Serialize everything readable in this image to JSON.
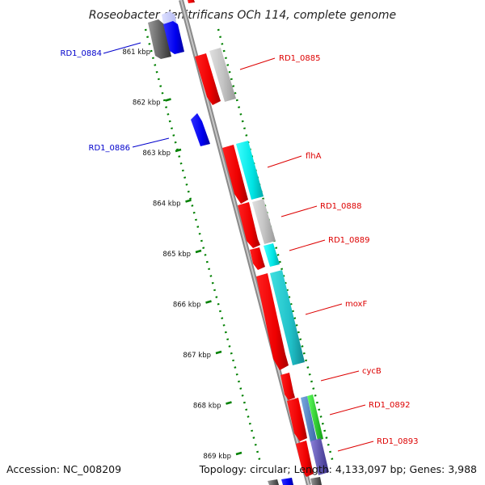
{
  "title": "Roseobacter denitrificans OCh 114, complete genome",
  "footer": {
    "accession": "Accession: NC_008209",
    "summary": "Topology: circular; Length: 4,133,097 bp; Genes: 3,988"
  },
  "colors": {
    "forward_label": "#dd0000",
    "reverse_label": "#0000cc",
    "tick": "#008000",
    "backbone": "#888888"
  },
  "ticks": [
    "861 kbp",
    "862 kbp",
    "863 kbp",
    "864 kbp",
    "865 kbp",
    "866 kbp",
    "867 kbp",
    "868 kbp",
    "869 kbp"
  ],
  "genes_reverse": [
    {
      "label": "RD1_0884"
    },
    {
      "label": "RD1_0886"
    }
  ],
  "genes_forward": [
    {
      "label": "RD1_0885"
    },
    {
      "label": "flhA"
    },
    {
      "label": "RD1_0888"
    },
    {
      "label": "RD1_0889"
    },
    {
      "label": "moxF"
    },
    {
      "label": "cycB"
    },
    {
      "label": "RD1_0892"
    },
    {
      "label": "RD1_0893"
    }
  ]
}
